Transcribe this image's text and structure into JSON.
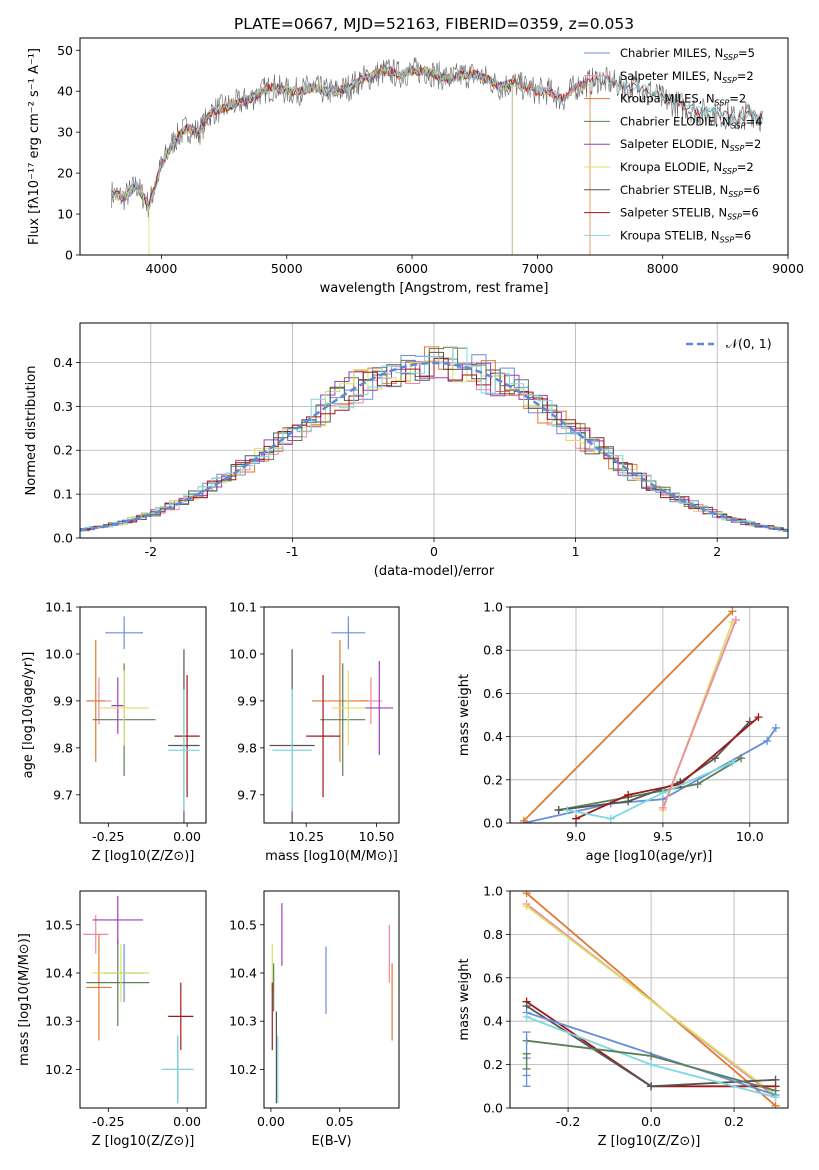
{
  "title": "PLATE=0667, MJD=52163, FIBERID=0359, z=0.053",
  "colors": {
    "Chabrier MILES": "#6a8fd8",
    "Salpeter MILES": "#f08aa0",
    "Kroupa MILES": "#e07a30",
    "Chabrier ELODIE": "#5a7f5a",
    "Salpeter ELODIE": "#9a3fc0",
    "Kroupa ELODIE": "#d8e06a",
    "Chabrier STELIB": "#555555",
    "Salpeter STELIB": "#a01818",
    "Kroupa STELIB": "#7fd8e0"
  },
  "chart_data": [
    {
      "id": "spectrum",
      "type": "line",
      "title": "PLATE=0667, MJD=52163, FIBERID=0359, z=0.053",
      "xlabel": "wavelength [Angstrom, rest frame]",
      "ylabel": "Flux [fλ10⁻¹⁷ erg cm⁻² s⁻¹ A⁻¹]",
      "xlim": [
        3350,
        9000
      ],
      "ylim": [
        0,
        53
      ],
      "xticks": [
        4000,
        5000,
        6000,
        7000,
        8000,
        9000
      ],
      "yticks": [
        0,
        10,
        20,
        30,
        40,
        50
      ],
      "legend": "top-right",
      "series": [
        {
          "name": "Chabrier MILES, N_SSP=5",
          "color": "#6a8fd8"
        },
        {
          "name": "Salpeter MILES, N_SSP=2",
          "color": "#f08aa0"
        },
        {
          "name": "Kroupa MILES, N_SSP=2",
          "color": "#e07a30"
        },
        {
          "name": "Chabrier ELODIE, N_SSP=4",
          "color": "#5a7f5a"
        },
        {
          "name": "Salpeter ELODIE, N_SSP=2",
          "color": "#9a3fc0"
        },
        {
          "name": "Kroupa ELODIE, N_SSP=2",
          "color": "#d8e06a"
        },
        {
          "name": "Chabrier STELIB, N_SSP=6",
          "color": "#555555"
        },
        {
          "name": "Salpeter STELIB, N_SSP=6",
          "color": "#a01818"
        },
        {
          "name": "Kroupa STELIB, N_SSP=6",
          "color": "#7fd8e0"
        }
      ],
      "continuum": {
        "x": [
          3600,
          3700,
          3800,
          3900,
          4000,
          4100,
          4200,
          4300,
          4400,
          4500,
          4600,
          4700,
          4800,
          4900,
          5000,
          5100,
          5200,
          5300,
          5400,
          5500,
          5600,
          5700,
          5800,
          5900,
          6000,
          6100,
          6200,
          6300,
          6400,
          6500,
          6600,
          6700,
          6800,
          6900,
          7000,
          7100,
          7200,
          7300,
          7400,
          7500,
          7600,
          7700,
          7800,
          7900,
          8000,
          8100,
          8200,
          8300,
          8400,
          8500,
          8600,
          8700,
          8800
        ],
        "y": [
          15,
          14,
          17,
          12,
          22,
          28,
          31,
          30,
          35,
          36,
          37,
          38,
          40,
          41,
          40,
          40,
          41,
          40,
          40,
          41,
          43,
          44,
          45,
          44,
          45,
          45,
          44,
          43,
          44,
          44,
          43,
          41,
          42,
          41,
          40,
          40,
          38,
          41,
          42,
          43,
          42,
          41,
          41,
          40,
          38,
          37,
          36,
          35,
          35,
          34,
          33,
          35,
          33
        ]
      },
      "dips": [
        {
          "x": 3900,
          "y": 0
        },
        {
          "x": 6800,
          "y": 0
        },
        {
          "x": 7420,
          "y": 0
        }
      ]
    },
    {
      "id": "residuals",
      "type": "histogram",
      "xlabel": "(data-model)/error",
      "ylabel": "Normed distribution",
      "xlim": [
        -2.5,
        2.5
      ],
      "ylim": [
        0,
        0.49
      ],
      "xticks": [
        -2,
        -1,
        0,
        1,
        2
      ],
      "yticks": [
        0.0,
        0.1,
        0.2,
        0.3,
        0.4
      ],
      "grid": true,
      "legend": "top-right",
      "normal_label": "𝒩(0, 1)",
      "normal_color": "#5b8bd6"
    },
    {
      "id": "age-vs-Z",
      "type": "scatter",
      "xlabel": "Z [log10(Z/Z⊙)]",
      "ylabel": "age  [log10(age/yr)]",
      "xlim": [
        -0.34,
        0.06
      ],
      "ylim": [
        9.64,
        10.1
      ],
      "xticks": [
        -0.25,
        0.0
      ],
      "yticks": [
        9.7,
        9.8,
        9.9,
        10.0,
        10.1
      ],
      "points": [
        {
          "model": "Chabrier MILES",
          "x": -0.2,
          "xerr": 0.06,
          "y": 10.045,
          "yerr": 0.035
        },
        {
          "model": "Salpeter MILES",
          "x": -0.28,
          "xerr": 0.04,
          "y": 9.9,
          "yerr": 0.05
        },
        {
          "model": "Kroupa MILES",
          "x": -0.29,
          "xerr": 0.03,
          "y": 9.9,
          "yerr": 0.13
        },
        {
          "model": "Chabrier ELODIE",
          "x": -0.2,
          "xerr": 0.1,
          "y": 9.86,
          "yerr": 0.12
        },
        {
          "model": "Salpeter ELODIE",
          "x": -0.22,
          "xerr": 0.02,
          "y": 9.89,
          "yerr": 0.06
        },
        {
          "model": "Kroupa ELODIE",
          "x": -0.2,
          "xerr": 0.08,
          "y": 9.885,
          "yerr": 0.08
        },
        {
          "model": "Chabrier STELIB",
          "x": -0.01,
          "xerr": 0.05,
          "y": 9.805,
          "yerr": 0.205
        },
        {
          "model": "Salpeter STELIB",
          "x": 0.0,
          "xerr": 0.04,
          "y": 9.825,
          "yerr": 0.13
        },
        {
          "model": "Kroupa STELIB",
          "x": -0.01,
          "xerr": 0.05,
          "y": 9.795,
          "yerr": 0.13
        }
      ]
    },
    {
      "id": "age-vs-mass",
      "type": "scatter",
      "xlabel": "mass [log10(M/M⊙)]",
      "xlim": [
        10.1,
        10.58
      ],
      "ylim": [
        9.64,
        10.1
      ],
      "xticks": [
        10.25,
        10.5
      ],
      "yticks": [
        9.7,
        9.8,
        9.9,
        10.0,
        10.1
      ],
      "points": [
        {
          "model": "Chabrier MILES",
          "x": 10.4,
          "xerr": 0.06,
          "y": 10.045,
          "yerr": 0.035
        },
        {
          "model": "Salpeter MILES",
          "x": 10.48,
          "xerr": 0.04,
          "y": 9.9,
          "yerr": 0.05
        },
        {
          "model": "Kroupa MILES",
          "x": 10.37,
          "xerr": 0.1,
          "y": 9.9,
          "yerr": 0.13
        },
        {
          "model": "Chabrier ELODIE",
          "x": 10.38,
          "xerr": 0.08,
          "y": 9.86,
          "yerr": 0.12
        },
        {
          "model": "Salpeter ELODIE",
          "x": 10.51,
          "xerr": 0.05,
          "y": 9.885,
          "yerr": 0.1
        },
        {
          "model": "Kroupa ELODIE",
          "x": 10.4,
          "xerr": 0.06,
          "y": 9.885,
          "yerr": 0.08
        },
        {
          "model": "Chabrier STELIB",
          "x": 10.2,
          "xerr": 0.08,
          "y": 9.805,
          "yerr": 0.205
        },
        {
          "model": "Salpeter STELIB",
          "x": 10.31,
          "xerr": 0.06,
          "y": 9.825,
          "yerr": 0.13
        },
        {
          "model": "Kroupa STELIB",
          "x": 10.2,
          "xerr": 0.07,
          "y": 9.795,
          "yerr": 0.13
        }
      ]
    },
    {
      "id": "mass-weight-vs-age",
      "type": "line",
      "xlabel": "age  [log10(age/yr)]",
      "ylabel": "mass weight",
      "xlim": [
        8.62,
        10.22
      ],
      "ylim": [
        0,
        1
      ],
      "xticks": [
        9.0,
        9.5,
        10.0
      ],
      "yticks": [
        0.0,
        0.2,
        0.4,
        0.6,
        0.8,
        1.0
      ],
      "grid": true,
      "series": [
        {
          "model": "Chabrier MILES",
          "x": [
            8.7,
            9.2,
            9.5,
            10.1,
            10.15
          ],
          "y": [
            0.0,
            0.09,
            0.11,
            0.38,
            0.44
          ]
        },
        {
          "model": "Chabrier ELODIE",
          "x": [
            8.9,
            9.3,
            9.7,
            9.95
          ],
          "y": [
            0.06,
            0.12,
            0.18,
            0.3
          ]
        },
        {
          "model": "Chabrier STELIB",
          "x": [
            8.9,
            9.3,
            9.6,
            9.8,
            10.0
          ],
          "y": [
            0.06,
            0.1,
            0.19,
            0.3,
            0.47
          ]
        },
        {
          "model": "Salpeter STELIB",
          "x": [
            9.0,
            9.3,
            9.6,
            10.05
          ],
          "y": [
            0.02,
            0.13,
            0.18,
            0.49
          ]
        },
        {
          "model": "Kroupa STELIB",
          "x": [
            8.95,
            9.2,
            9.5,
            9.9
          ],
          "y": [
            0.06,
            0.02,
            0.14,
            0.28
          ]
        },
        {
          "model": "Kroupa MILES",
          "x": [
            8.7,
            9.9
          ],
          "y": [
            0.01,
            0.98
          ]
        },
        {
          "model": "Kroupa ELODIE",
          "x": [
            9.5,
            9.9
          ],
          "y": [
            0.06,
            0.93
          ]
        },
        {
          "model": "Salpeter MILES",
          "x": [
            9.5,
            9.92
          ],
          "y": [
            0.07,
            0.94
          ]
        }
      ]
    },
    {
      "id": "mass-vs-Z",
      "type": "scatter",
      "xlabel": "Z [log10(Z/Z⊙)]",
      "ylabel": "mass [log10(M/M⊙)]",
      "xlim": [
        -0.34,
        0.06
      ],
      "ylim": [
        10.12,
        10.57
      ],
      "xticks": [
        -0.25,
        0.0
      ],
      "yticks": [
        10.2,
        10.3,
        10.4,
        10.5
      ],
      "points": [
        {
          "model": "Chabrier MILES",
          "x": -0.2,
          "xerr": 0.06,
          "y": 10.4,
          "yerr": 0.06
        },
        {
          "model": "Salpeter MILES",
          "x": -0.29,
          "xerr": 0.04,
          "y": 10.48,
          "yerr": 0.04
        },
        {
          "model": "Kroupa MILES",
          "x": -0.28,
          "xerr": 0.04,
          "y": 10.37,
          "yerr": 0.11
        },
        {
          "model": "Chabrier ELODIE",
          "x": -0.22,
          "xerr": 0.1,
          "y": 10.38,
          "yerr": 0.09
        },
        {
          "model": "Salpeter ELODIE",
          "x": -0.22,
          "xerr": 0.08,
          "y": 10.51,
          "yerr": 0.05
        },
        {
          "model": "Kroupa ELODIE",
          "x": -0.21,
          "xerr": 0.09,
          "y": 10.4,
          "yerr": 0.06
        },
        {
          "model": "Chabrier STELIB",
          "x": -0.03,
          "xerr": 0.05,
          "y": 10.2,
          "yerr": 0.07
        },
        {
          "model": "Salpeter STELIB",
          "x": -0.02,
          "xerr": 0.04,
          "y": 10.31,
          "yerr": 0.07
        },
        {
          "model": "Kroupa STELIB",
          "x": -0.03,
          "xerr": 0.05,
          "y": 10.2,
          "yerr": 0.07
        }
      ]
    },
    {
      "id": "mass-vs-EBV",
      "type": "scatter",
      "xlabel": "E(B-V)",
      "xlim": [
        -0.005,
        0.093
      ],
      "ylim": [
        10.12,
        10.57
      ],
      "xticks": [
        0.0,
        0.05
      ],
      "yticks": [
        10.2,
        10.3,
        10.4,
        10.5
      ],
      "points": [
        {
          "model": "Chabrier MILES",
          "x": 0.04,
          "y": 10.385,
          "yerr": 0.07
        },
        {
          "model": "Salpeter MILES",
          "x": 0.086,
          "y": 10.44,
          "yerr": 0.06
        },
        {
          "model": "Kroupa MILES",
          "x": 0.088,
          "y": 10.34,
          "yerr": 0.08
        },
        {
          "model": "Chabrier ELODIE",
          "x": 0.002,
          "y": 10.37,
          "yerr": 0.05
        },
        {
          "model": "Salpeter ELODIE",
          "x": 0.008,
          "y": 10.48,
          "yerr": 0.065
        },
        {
          "model": "Kroupa ELODIE",
          "x": 0.001,
          "y": 10.41,
          "yerr": 0.05
        },
        {
          "model": "Chabrier STELIB",
          "x": 0.004,
          "y": 10.225,
          "yerr": 0.095
        },
        {
          "model": "Salpeter STELIB",
          "x": 0.001,
          "y": 10.31,
          "yerr": 0.07
        },
        {
          "model": "Kroupa STELIB",
          "x": 0.005,
          "y": 10.2,
          "yerr": 0.07
        }
      ]
    },
    {
      "id": "mass-weight-vs-Z",
      "type": "line",
      "xlabel": "Z [log10(Z/Z⊙)]",
      "ylabel": "mass weight",
      "xlim": [
        -0.34,
        0.33
      ],
      "ylim": [
        0,
        1
      ],
      "xticks": [
        -0.2,
        0.0,
        0.2
      ],
      "yticks": [
        0.0,
        0.2,
        0.4,
        0.6,
        0.8,
        1.0
      ],
      "grid": true,
      "series": [
        {
          "model": "Kroupa MILES",
          "x": [
            -0.3,
            0.3
          ],
          "y": [
            0.99,
            0.01
          ]
        },
        {
          "model": "Salpeter MILES",
          "x": [
            -0.3,
            0.3
          ],
          "y": [
            0.94,
            0.05
          ]
        },
        {
          "model": "Kroupa ELODIE",
          "x": [
            -0.3,
            0.3
          ],
          "y": [
            0.93,
            0.06
          ]
        },
        {
          "model": "Salpeter STELIB",
          "x": [
            -0.3,
            0.0,
            0.3
          ],
          "y": [
            0.49,
            0.1,
            0.1
          ]
        },
        {
          "model": "Chabrier STELIB",
          "x": [
            -0.3,
            0.0,
            0.3
          ],
          "y": [
            0.47,
            0.1,
            0.13
          ]
        },
        {
          "model": "Chabrier MILES",
          "x": [
            -0.3,
            0.3
          ],
          "y": [
            0.44,
            0.06
          ]
        },
        {
          "model": "Kroupa STELIB",
          "x": [
            -0.3,
            0.0,
            0.3
          ],
          "y": [
            0.42,
            0.2,
            0.05
          ]
        },
        {
          "model": "Chabrier ELODIE",
          "x": [
            -0.3,
            0.0,
            0.3
          ],
          "y": [
            0.31,
            0.24,
            0.08
          ]
        }
      ],
      "vertical_markers": [
        {
          "model": "Chabrier MILES",
          "x": -0.3,
          "ys": [
            0.1,
            0.15,
            0.23,
            0.35
          ]
        },
        {
          "model": "Chabrier ELODIE",
          "x": -0.3,
          "ys": [
            0.18,
            0.25
          ]
        }
      ]
    }
  ]
}
